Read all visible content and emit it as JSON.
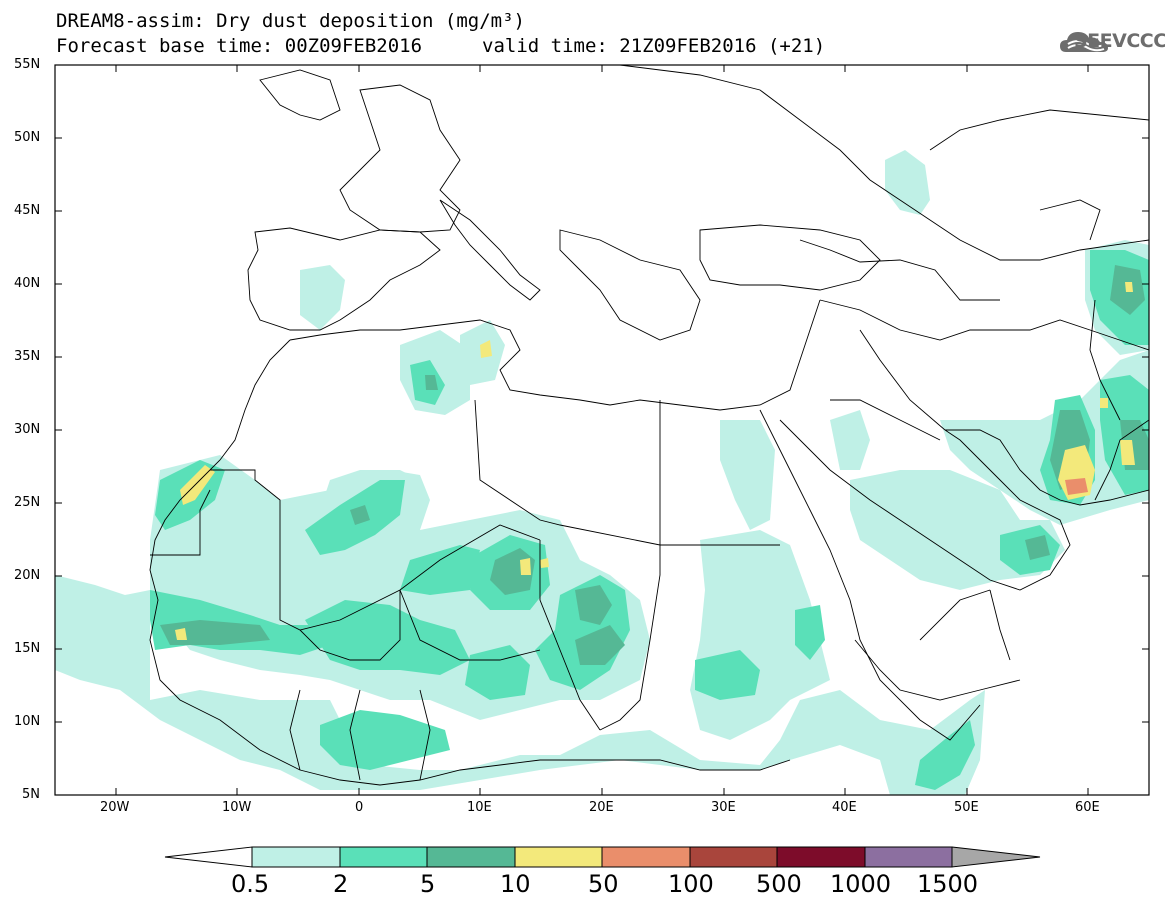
{
  "header": {
    "line1": "DREAM8-assim: Dry dust deposition (mg/m³)",
    "line2_left": "Forecast base time: 00Z09FEB2016",
    "line2_right": "valid time: 21Z09FEB2016 (+21)"
  },
  "logo": {
    "text": "SEEVCCC",
    "icon": "cloud-icon",
    "color": "#6d6d6d"
  },
  "map": {
    "lat_labels": [
      "55N",
      "50N",
      "45N",
      "40N",
      "35N",
      "30N",
      "25N",
      "20N",
      "15N",
      "10N",
      "5N"
    ],
    "lon_labels": [
      "20W",
      "10W",
      "0",
      "10E",
      "20E",
      "30E",
      "40E",
      "50E",
      "60E"
    ],
    "lat_range": [
      5,
      55
    ],
    "lon_range": [
      -25,
      65
    ]
  },
  "colorbar": {
    "labels": [
      "0.5",
      "2",
      "5",
      "10",
      "50",
      "100",
      "500",
      "1000",
      "1500"
    ],
    "colors": [
      "#ffffff",
      "#bff0e6",
      "#5ae0b8",
      "#55b895",
      "#f3e97b",
      "#ea8e6b",
      "#a9453c",
      "#7d0c2a",
      "#8c6fa0",
      "#a7a7a7"
    ]
  }
}
